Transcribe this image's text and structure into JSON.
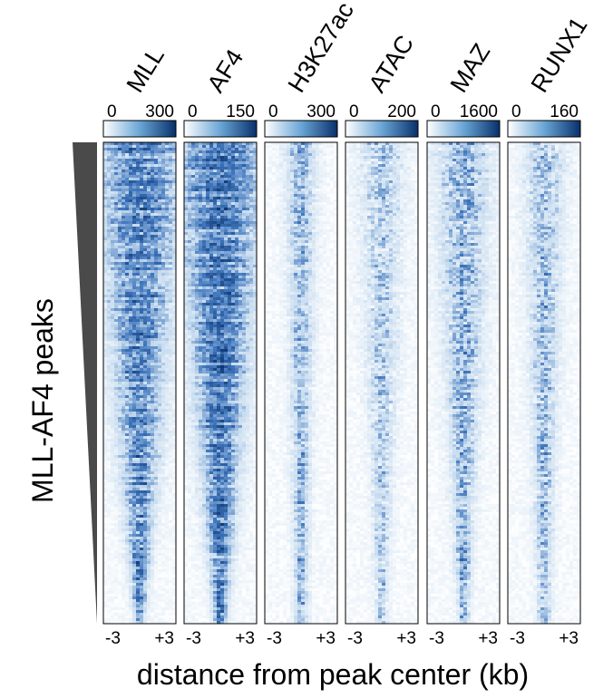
{
  "chart_data": {
    "type": "heatmap",
    "ylabel": "MLL-AF4 peaks",
    "xlabel": "distance from peak center (kb)",
    "x_ticks": [
      "-3",
      "+3"
    ],
    "x_range_kb": [
      -3,
      3
    ],
    "row_order": "sorted by decreasing MLL-AF4 peak signal (top to bottom)",
    "colormap": {
      "low": "#ffffff",
      "high": "#08306b"
    },
    "tracks": [
      {
        "name": "MLL",
        "colorbar_ticks": [
          "0",
          "300"
        ],
        "colorbar_range": [
          0,
          300
        ]
      },
      {
        "name": "AF4",
        "colorbar_ticks": [
          "0",
          "150"
        ],
        "colorbar_range": [
          0,
          150
        ]
      },
      {
        "name": "H3K27ac",
        "colorbar_ticks": [
          "0",
          "300"
        ],
        "colorbar_range": [
          0,
          300
        ]
      },
      {
        "name": "ATAC",
        "colorbar_ticks": [
          "0",
          "200"
        ],
        "colorbar_range": [
          0,
          200
        ]
      },
      {
        "name": "MAZ",
        "colorbar_ticks": [
          "0",
          "1600"
        ],
        "colorbar_range": [
          0,
          1600
        ]
      },
      {
        "name": "RUNX1",
        "colorbar_ticks": [
          "0",
          "160"
        ],
        "colorbar_range": [
          0,
          160
        ]
      }
    ]
  }
}
